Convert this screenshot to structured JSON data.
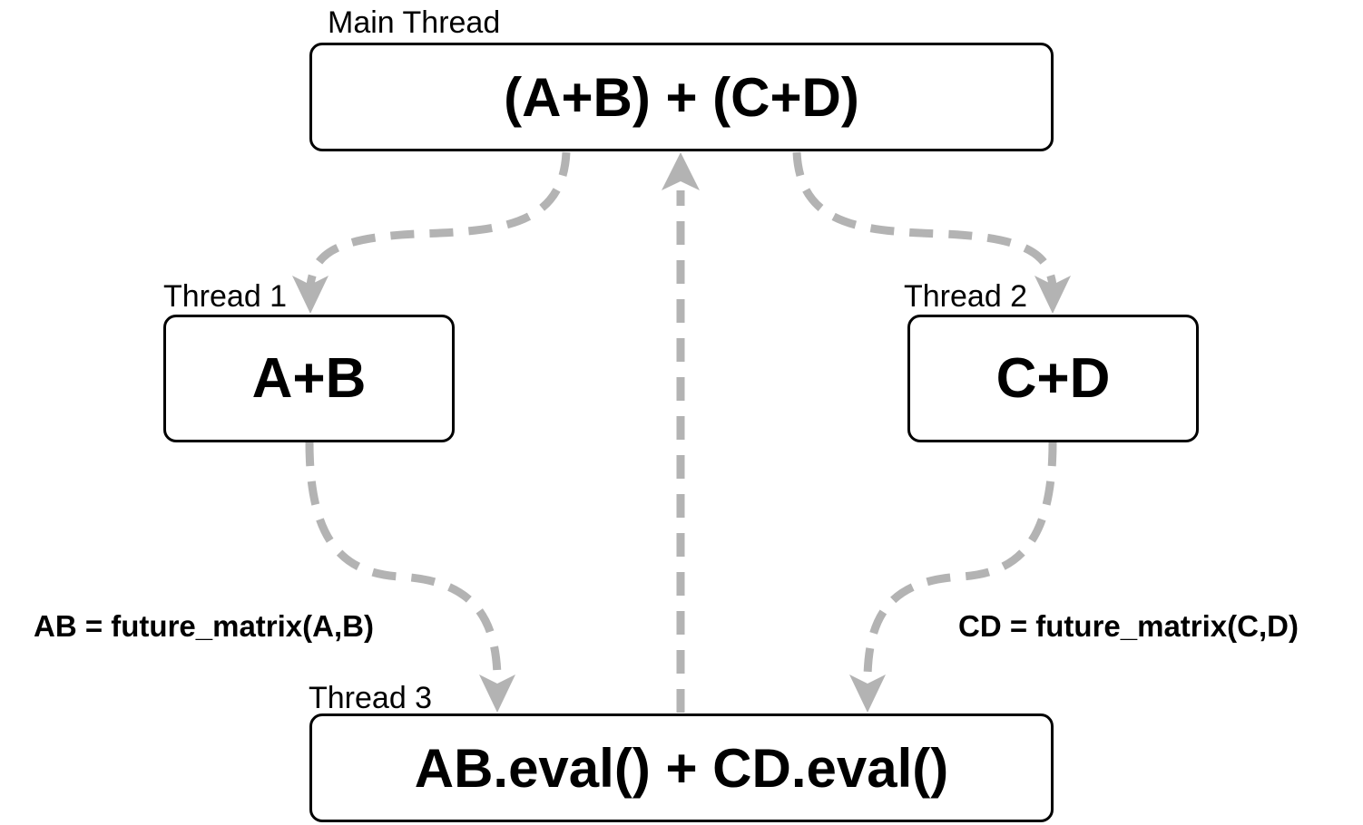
{
  "nodes": {
    "main": {
      "caption": "Main Thread",
      "text": "(A+B) + (C+D)"
    },
    "thread1": {
      "caption": "Thread 1",
      "text": "A+B"
    },
    "thread2": {
      "caption": "Thread 2",
      "text": "C+D"
    },
    "thread3": {
      "caption": "Thread 3",
      "text": "AB.eval() + CD.eval()"
    }
  },
  "edge_labels": {
    "ab": "AB = future_matrix(A,B)",
    "cd": "CD = future_matrix(C,D)"
  },
  "colors": {
    "arrow": "#b3b3b3",
    "box_border": "#000000",
    "text": "#000000"
  }
}
